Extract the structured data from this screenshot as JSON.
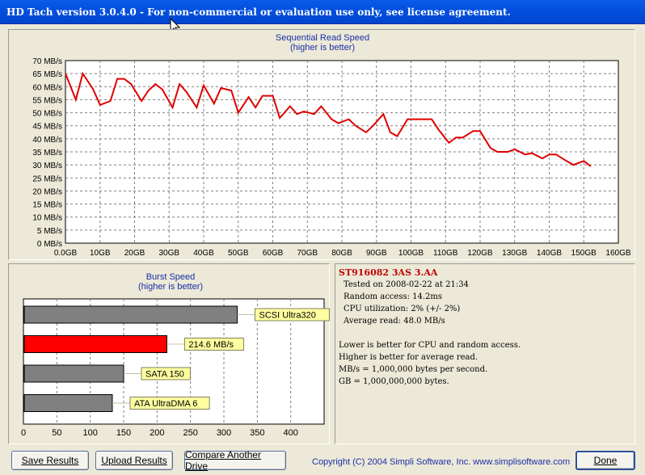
{
  "window": {
    "title": "HD Tach version 3.0.4.0  - For non-commercial or evaluation use only, see license agreement."
  },
  "sequential": {
    "title_line1": "Sequential Read Speed",
    "title_line2": "(higher is better)"
  },
  "burst": {
    "title_line1": "Burst Speed",
    "title_line2": "(higher is better)"
  },
  "info": {
    "model": "ST916082 3AS 3.AA",
    "tested_on": "Tested on 2008-02-22 at 21:34",
    "random_access": "Random access: 14.2ms",
    "cpu_utilization": "CPU utilization: 2% (+/- 2%)",
    "average_read": "Average read: 48.0 MB/s",
    "note1": "Lower is better for CPU and random access.",
    "note2": "Higher is better for average read.",
    "note3": "MB/s = 1,000,000 bytes per second.",
    "note4": "GB = 1,000,000,000 bytes."
  },
  "buttons": {
    "save_results": "Save Results",
    "upload_results": "Upload Results",
    "compare_another_drive": "Compare Another Drive",
    "done": "Done"
  },
  "footer": {
    "copyright": "Copyright (C) 2004 Simpli Software, Inc. www.simplisoftware.com"
  },
  "colors": {
    "title_bar": "#0350df",
    "line_red": "#e00000",
    "bar_gray": "#808080",
    "bar_red": "#ff0000",
    "label_yellow": "#ffffa0",
    "blue_text": "#1a2fa8"
  },
  "chart_data": [
    {
      "type": "line",
      "title": "Sequential Read Speed",
      "subtitle": "(higher is better)",
      "xlim": [
        0,
        160
      ],
      "ylim": [
        0,
        70
      ],
      "x_tick_labels": [
        "0.0GB",
        "10GB",
        "20GB",
        "30GB",
        "40GB",
        "50GB",
        "60GB",
        "70GB",
        "80GB",
        "90GB",
        "100GB",
        "110GB",
        "120GB",
        "130GB",
        "140GB",
        "150GB",
        "160GB"
      ],
      "y_tick_labels": [
        "0 MB/s",
        "5 MB/s",
        "10 MB/s",
        "15 MB/s",
        "20 MB/s",
        "25 MB/s",
        "30 MB/s",
        "35 MB/s",
        "40 MB/s",
        "45 MB/s",
        "50 MB/s",
        "55 MB/s",
        "60 MB/s",
        "65 MB/s",
        "70 MB/s"
      ],
      "grid": true,
      "series": [
        {
          "points": [
            [
              0,
              65
            ],
            [
              3,
              55
            ],
            [
              5,
              65
            ],
            [
              8,
              59
            ],
            [
              10,
              53
            ],
            [
              13,
              54.5
            ],
            [
              15,
              63
            ],
            [
              17,
              63
            ],
            [
              19,
              61
            ],
            [
              22,
              54.5
            ],
            [
              24,
              58.5
            ],
            [
              26,
              61
            ],
            [
              28,
              59
            ],
            [
              31,
              52
            ],
            [
              33,
              61
            ],
            [
              35,
              58
            ],
            [
              38,
              52
            ],
            [
              40,
              60.5
            ],
            [
              43,
              53.5
            ],
            [
              45,
              59.5
            ],
            [
              48,
              58.5
            ],
            [
              50,
              50
            ],
            [
              53,
              56
            ],
            [
              55,
              52
            ],
            [
              57,
              56.5
            ],
            [
              60,
              56.5
            ],
            [
              62,
              48
            ],
            [
              65,
              52.5
            ],
            [
              67,
              49.5
            ],
            [
              69,
              50.5
            ],
            [
              72,
              49.5
            ],
            [
              74,
              52.5
            ],
            [
              77,
              47.5
            ],
            [
              79,
              46
            ],
            [
              82,
              47.5
            ],
            [
              84,
              45
            ],
            [
              87,
              42.5
            ],
            [
              89,
              45
            ],
            [
              92,
              49.5
            ],
            [
              94,
              42.5
            ],
            [
              96,
              41
            ],
            [
              99,
              47.5
            ],
            [
              101,
              47.5
            ],
            [
              104,
              47.5
            ],
            [
              106,
              47.5
            ],
            [
              108,
              43.5
            ],
            [
              111,
              38.5
            ],
            [
              113,
              40.5
            ],
            [
              115,
              40.5
            ],
            [
              118,
              43
            ],
            [
              120,
              43
            ],
            [
              123,
              36.5
            ],
            [
              125,
              35
            ],
            [
              128,
              35
            ],
            [
              130,
              36
            ],
            [
              133,
              34
            ],
            [
              135,
              34.5
            ],
            [
              138,
              32.5
            ],
            [
              140,
              34
            ],
            [
              142,
              34
            ],
            [
              145,
              31.5
            ],
            [
              147,
              30
            ],
            [
              150,
              31.5
            ],
            [
              152,
              29.5
            ]
          ]
        }
      ]
    },
    {
      "type": "bar",
      "orientation": "horizontal",
      "title": "Burst Speed",
      "subtitle": "(higher is better)",
      "xlim": [
        0,
        450
      ],
      "x_tick_labels": [
        "0",
        "50",
        "100",
        "150",
        "200",
        "250",
        "300",
        "350",
        "400"
      ],
      "grid": true,
      "bars": [
        {
          "label": "SCSI Ultra320",
          "value": 320,
          "highlight": false
        },
        {
          "label": "214.6 MB/s",
          "value": 214.6,
          "highlight": true
        },
        {
          "label": "SATA 150",
          "value": 150,
          "highlight": false
        },
        {
          "label": "ATA UltraDMA 6",
          "value": 133,
          "highlight": false
        }
      ]
    }
  ]
}
